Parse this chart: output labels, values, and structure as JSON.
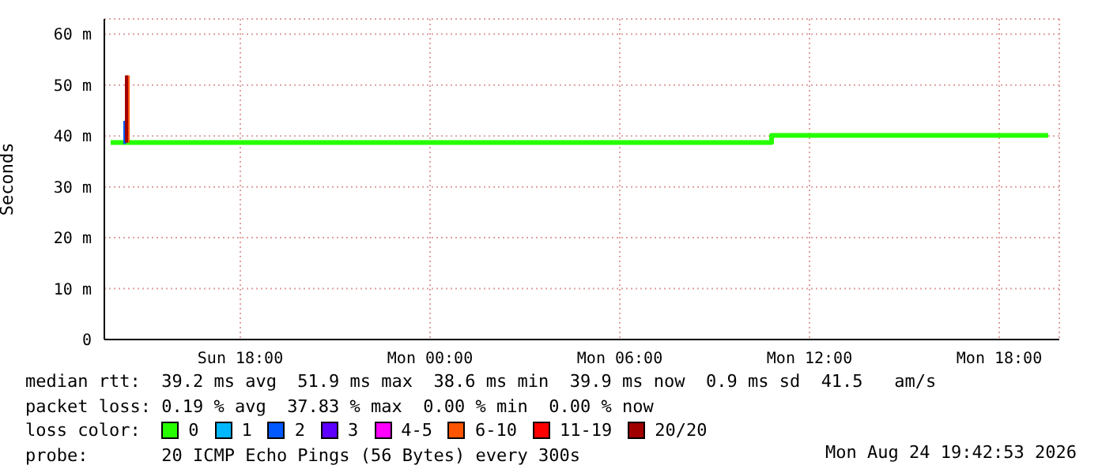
{
  "chart_data": {
    "type": "step",
    "ylabel": "Seconds",
    "xlim": [
      "2026-08-23T13:42",
      "2026-08-24T19:54"
    ],
    "ylim": [
      0,
      63
    ],
    "xticks": [
      {
        "value": "2026-08-23T18:00",
        "label": "Sun 18:00"
      },
      {
        "value": "2026-08-24T00:00",
        "label": "Mon 00:00"
      },
      {
        "value": "2026-08-24T06:00",
        "label": "Mon 06:00"
      },
      {
        "value": "2026-08-24T12:00",
        "label": "Mon 12:00"
      },
      {
        "value": "2026-08-24T18:00",
        "label": "Mon 18:00"
      }
    ],
    "yticks": [
      {
        "value": 0,
        "label": "0"
      },
      {
        "value": 10,
        "label": "10 m"
      },
      {
        "value": 20,
        "label": "20 m"
      },
      {
        "value": 30,
        "label": "30 m"
      },
      {
        "value": 40,
        "label": "40 m"
      },
      {
        "value": 50,
        "label": "50 m"
      },
      {
        "value": 60,
        "label": "60 m"
      }
    ],
    "grid": true,
    "legend": "bottom",
    "legend_title": "loss color:",
    "series": [
      {
        "name": "0",
        "color": "#26ff00",
        "x": [
          "2026-08-23T13:54",
          "2026-08-23T14:18",
          "2026-08-23T14:27",
          "2026-08-24T10:48",
          "2026-08-24T19:33"
        ],
        "values": [
          38.7,
          38.7,
          38.7,
          40.1,
          40.1
        ]
      },
      {
        "name": "1",
        "color": "#00b8ff"
      },
      {
        "name": "2",
        "color": "#0059ff",
        "x": [
          "2026-08-23T14:18",
          "2026-08-23T14:21"
        ],
        "values": [
          38.7,
          43
        ]
      },
      {
        "name": "3",
        "color": "#5e00ff"
      },
      {
        "name": "4-5",
        "color": "#ff00ff"
      },
      {
        "name": "6-10",
        "color": "#ff5500",
        "x": [
          "2026-08-23T14:27",
          "2026-08-23T14:27"
        ],
        "values": [
          38.7,
          51.9
        ]
      },
      {
        "name": "11-19",
        "color": "#ff0000"
      },
      {
        "name": "20/20",
        "color": "#a10000",
        "x": [
          "2026-08-23T14:24",
          "2026-08-23T14:24"
        ],
        "values": [
          38.7,
          51.9
        ]
      }
    ],
    "annotations": [
      "median rtt:  39.2 ms avg  51.9 ms max  38.6 ms min  39.9 ms now  0.9 ms sd  41.5   am/s",
      "packet loss: 0.19 % avg  37.83 % max  0.00 % min  0.00 % now",
      "probe:       20 ICMP Echo Pings (56 Bytes) every 300s",
      "Mon Aug 24 19:42:53 2026"
    ]
  }
}
